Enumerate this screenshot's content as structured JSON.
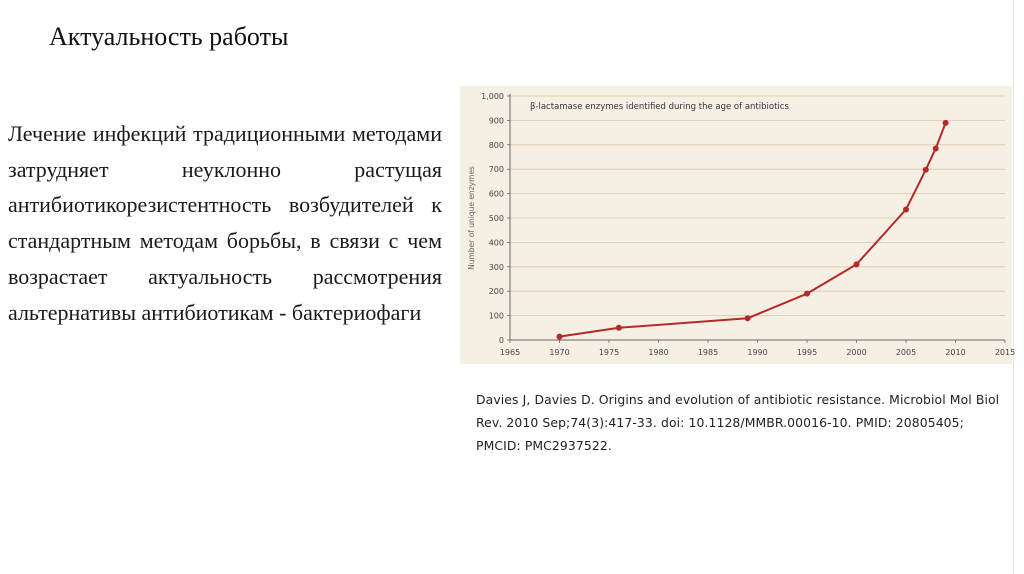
{
  "slide": {
    "title": "Актуальность работы",
    "body_text": "Лечение инфекций традиционными методами затрудняет неуклонно растущая антибиотикорезистентность возбудителей к стандартным методам борьбы, в связи с чем возрастает актуальность рассмотрения альтернативы антибиотикам - бактериофаги",
    "citation": "Davies J, Davies D. Origins and evolution of antibiotic resistance. Microbiol Mol Biol Rev. 2010 Sep;74(3):417-33. doi: 10.1128/MMBR.00016-10. PMID: 20805405; PMCID: PMC2937522."
  },
  "colors": {
    "line": "#b42a2a",
    "chart_background": "#f6efe4",
    "grid": "#d9c7a6"
  },
  "chart_data": {
    "type": "line",
    "title": "β-lactamase enzymes identified during the age of antibiotics",
    "xlabel": "",
    "ylabel": "Number of unique enzymes",
    "xlim": [
      1965,
      2015
    ],
    "ylim": [
      0,
      1000
    ],
    "x_ticks": [
      1965,
      1970,
      1975,
      1980,
      1985,
      1990,
      1995,
      2000,
      2005,
      2010,
      2015
    ],
    "x_tick_labels": [
      "1965",
      "1970",
      "1975",
      "1980",
      "1985",
      "1990",
      "1995",
      "2000",
      "2005",
      "2010",
      "2015"
    ],
    "y_ticks": [
      0,
      100,
      200,
      300,
      400,
      500,
      600,
      700,
      800,
      900,
      1000
    ],
    "y_tick_labels": [
      "0",
      "100",
      "200",
      "300",
      "400",
      "500",
      "600",
      "700",
      "800",
      "900",
      "1,000"
    ],
    "grid": true,
    "series": [
      {
        "x": [
          1970,
          1976,
          1989,
          1995,
          2000,
          2005,
          2007,
          2008,
          2009
        ],
        "y": [
          14,
          50,
          89,
          190,
          310,
          535,
          698,
          785,
          890
        ]
      }
    ]
  }
}
